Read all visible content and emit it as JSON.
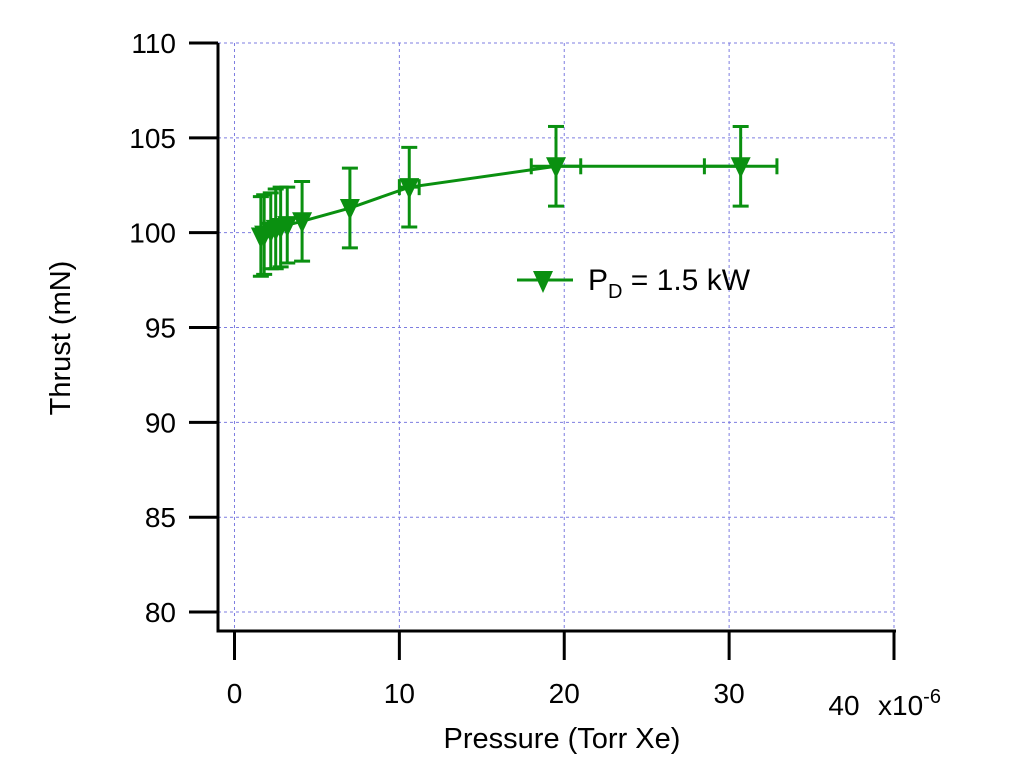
{
  "chart_data": {
    "type": "scatter",
    "xlabel": "Pressure (Torr Xe)",
    "ylabel": "Thrust (mN)",
    "x_multiplier_label": "x10",
    "x_multiplier_exponent": "-6",
    "xlim": [
      -1,
      40
    ],
    "ylim": [
      79,
      110
    ],
    "x_ticks": [
      0,
      10,
      20,
      30,
      40
    ],
    "y_ticks": [
      80,
      85,
      90,
      95,
      100,
      105,
      110
    ],
    "grid": true,
    "legend_position": "center-right",
    "series": [
      {
        "name_main": "P",
        "name_sub": "D",
        "name_rest": " = 1.5 kW",
        "color": "#0a9010",
        "marker": "triangle-down",
        "points": [
          {
            "x": 1.6,
            "y": 99.8,
            "yerr": 2.1,
            "xerr": 0
          },
          {
            "x": 1.8,
            "y": 99.9,
            "yerr": 2.1,
            "xerr": 0
          },
          {
            "x": 2.2,
            "y": 100.1,
            "yerr": 2.0,
            "xerr": 0
          },
          {
            "x": 2.5,
            "y": 100.2,
            "yerr": 2.1,
            "xerr": 0
          },
          {
            "x": 2.8,
            "y": 100.3,
            "yerr": 2.1,
            "xerr": 0
          },
          {
            "x": 3.2,
            "y": 100.4,
            "yerr": 2.0,
            "xerr": 0
          },
          {
            "x": 4.1,
            "y": 100.6,
            "yerr": 2.1,
            "xerr": 0
          },
          {
            "x": 7.0,
            "y": 101.3,
            "yerr": 2.1,
            "xerr": 0
          },
          {
            "x": 10.6,
            "y": 102.4,
            "yerr": 2.1,
            "xerr": 0.6
          },
          {
            "x": 19.5,
            "y": 103.5,
            "yerr": 2.1,
            "xerr": 1.5
          },
          {
            "x": 30.7,
            "y": 103.5,
            "yerr": 2.1,
            "xerr": 2.2
          }
        ]
      }
    ]
  }
}
